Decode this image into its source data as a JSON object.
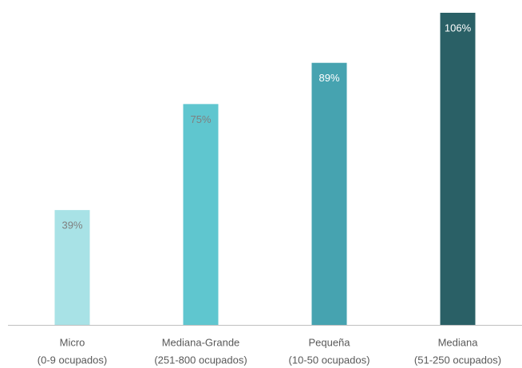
{
  "chart_data": {
    "type": "bar",
    "categories": [
      [
        "Micro",
        "(0-9 ocupados)"
      ],
      [
        "Mediana-Grande",
        "(251-800 ocupados)"
      ],
      [
        "Pequeña",
        "(10-50 ocupados)"
      ],
      [
        "Mediana",
        "(51-250 ocupados)"
      ]
    ],
    "values": [
      39,
      75,
      89,
      106
    ],
    "value_labels": [
      "39%",
      "75%",
      "89%",
      "106%"
    ],
    "colors": [
      "#a8e2e6",
      "#5fc6cf",
      "#46a3b0",
      "#2a6066"
    ],
    "label_colors": [
      "#7f7f7f",
      "#7f7f7f",
      "#ffffff",
      "#ffffff"
    ]
  }
}
